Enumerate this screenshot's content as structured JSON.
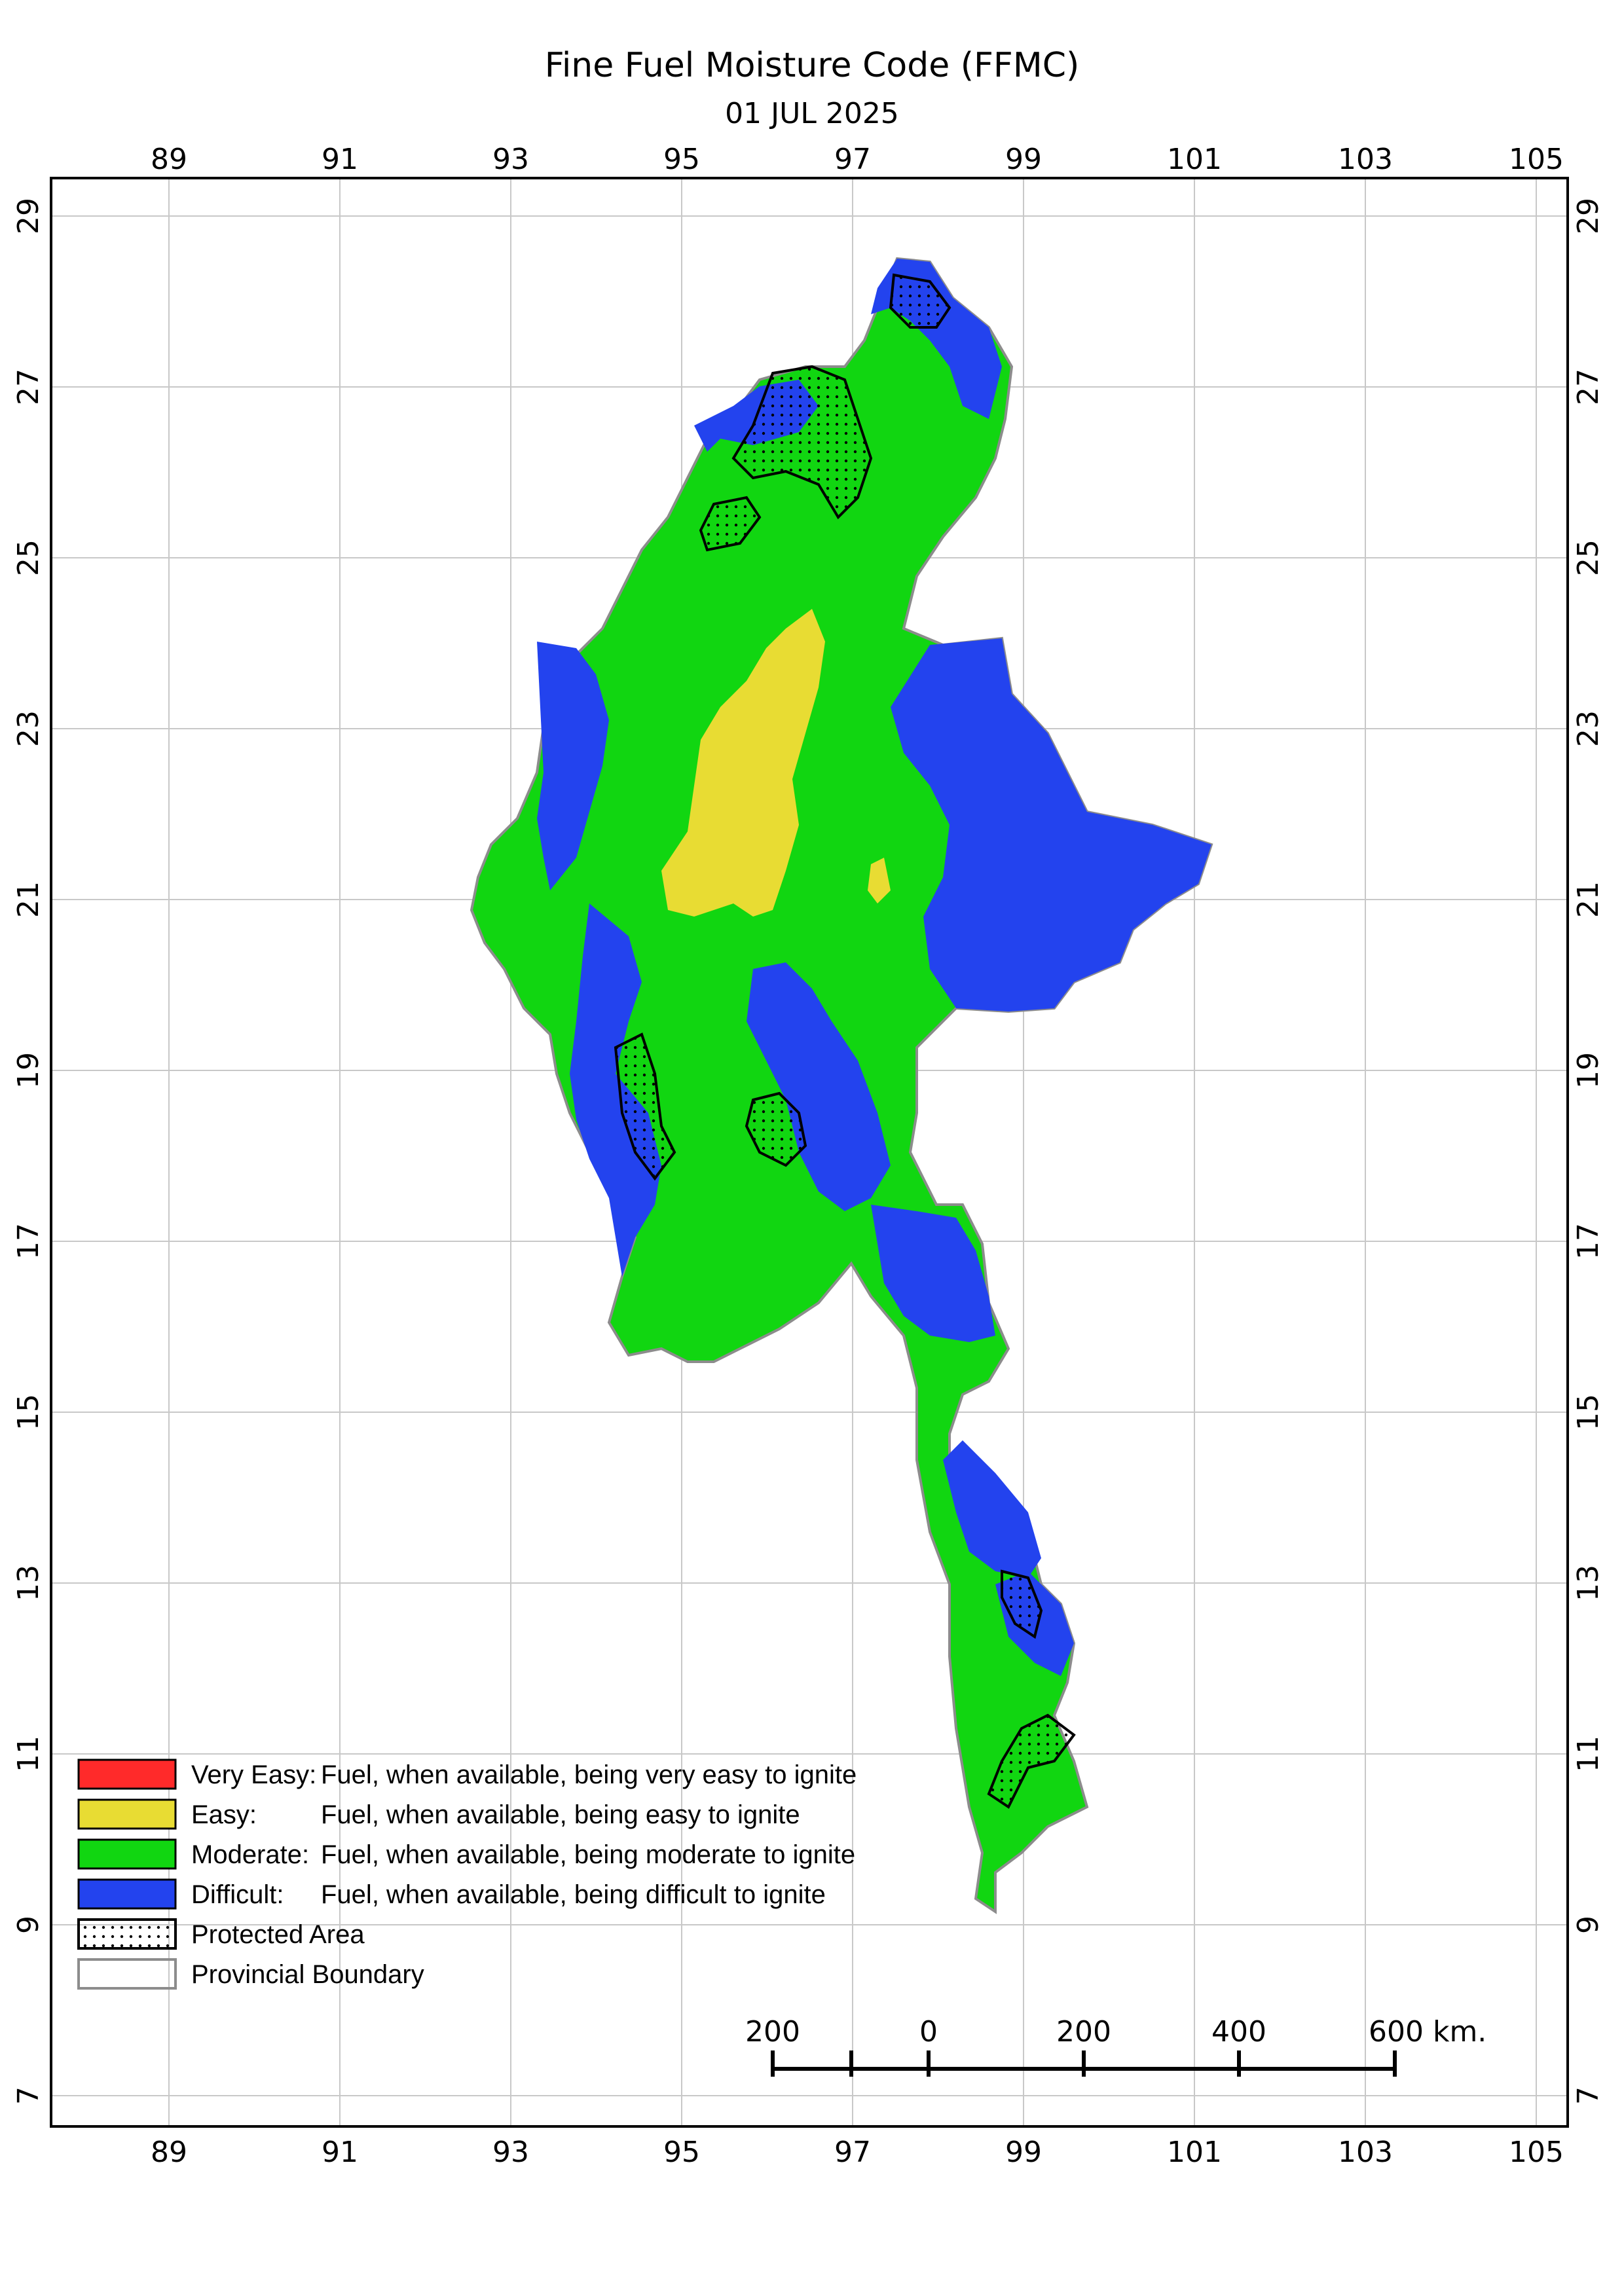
{
  "title": "Fine Fuel Moisture Code (FFMC)",
  "date": "01 JUL 2025",
  "colors": {
    "very_easy": "#ff2a2a",
    "easy": "#e8dc33",
    "moderate": "#11d611",
    "difficult": "#2343ee",
    "boundary": "#8c8c8c",
    "grid": "#c8c8c8"
  },
  "longitude_ticks": [
    "89",
    "91",
    "93",
    "95",
    "97",
    "99",
    "101",
    "103",
    "105"
  ],
  "latitude_ticks": [
    "29",
    "27",
    "25",
    "23",
    "21",
    "19",
    "17",
    "15",
    "13",
    "11",
    "9",
    "7"
  ],
  "legend": [
    {
      "class": "Very Easy:",
      "desc": "Fuel, when available, being very easy to ignite",
      "color": "#ff2a2a",
      "icon": "red-swatch"
    },
    {
      "class": "Easy:",
      "desc": "Fuel, when available, being easy to ignite",
      "color": "#e8dc33",
      "icon": "yellow-swatch"
    },
    {
      "class": "Moderate:",
      "desc": "Fuel, when available, being moderate to ignite",
      "color": "#11d611",
      "icon": "green-swatch"
    },
    {
      "class": "Difficult:",
      "desc": "Fuel, when available, being difficult to ignite",
      "color": "#2343ee",
      "icon": "blue-swatch"
    },
    {
      "class": "Protected Area",
      "desc": "",
      "icon": "dotted-swatch"
    },
    {
      "class": "Provincial Boundary",
      "desc": "",
      "icon": "outline-swatch"
    }
  ],
  "scale_bar": {
    "labels": [
      "200",
      "0",
      "200",
      "400",
      "600 km."
    ]
  }
}
